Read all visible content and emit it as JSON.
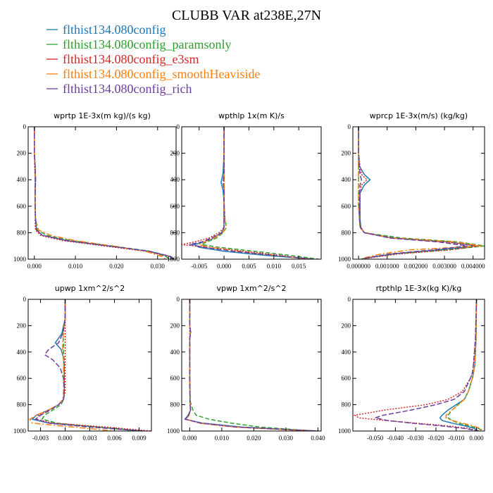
{
  "figure": {
    "title": "CLUBB VAR at238E,27N",
    "legend": [
      {
        "label": "flthist134.080config",
        "color": "#1f77b4"
      },
      {
        "label": "flthist134.080config_paramsonly",
        "color": "#2ca02c"
      },
      {
        "label": "flthist134.080config_e3sm",
        "color": "#d62728"
      },
      {
        "label": "flthist134.080config_smoothHeaviside",
        "color": "#ff7f0e"
      },
      {
        "label": "flthist134.080config_rich",
        "color": "#6b3fa0"
      }
    ]
  },
  "chart_data": [
    {
      "type": "line",
      "title": "wprtp  1E-3x(m kg)/(s kg)",
      "xlim": [
        -0.0015,
        0.0345
      ],
      "ylim": [
        1000,
        0
      ],
      "xticks": [
        0.0,
        0.01,
        0.02,
        0.03
      ],
      "xtick_labels": [
        "0.000",
        "0.010",
        "0.020",
        "0.030"
      ],
      "yticks": [
        0,
        200,
        400,
        600,
        800,
        1000
      ],
      "ytick_labels": [
        "0",
        "200",
        "400",
        "600",
        "800",
        "1000"
      ],
      "y": [
        0,
        100,
        200,
        300,
        400,
        500,
        600,
        700,
        780,
        820,
        860,
        900,
        940,
        980,
        1000
      ],
      "series": [
        {
          "name": "flthist134.080config",
          "values": [
            0,
            0,
            0,
            0.0002,
            0.0003,
            0.0002,
            0.0002,
            0.0003,
            0.0005,
            0.002,
            0.008,
            0.018,
            0.028,
            0.033,
            0.0335
          ]
        },
        {
          "name": "flthist134.080config_paramsonly",
          "values": [
            0,
            0,
            0,
            0.0002,
            0.0002,
            0.0002,
            0.0002,
            0.0003,
            0.0008,
            0.003,
            0.009,
            0.019,
            0.028,
            0.032,
            0.033
          ]
        },
        {
          "name": "flthist134.080config_e3sm",
          "values": [
            0,
            0,
            0,
            0.0001,
            0.0002,
            0.0002,
            0.0002,
            0.0002,
            0.0003,
            0.0015,
            0.007,
            0.017,
            0.027,
            0.033,
            0.034
          ]
        },
        {
          "name": "flthist134.080config_smoothHeaviside",
          "values": [
            0,
            0,
            0,
            0.0002,
            0.0003,
            0.0002,
            0.0002,
            0.0003,
            0.001,
            0.004,
            0.01,
            0.019,
            0.027,
            0.031,
            0.032
          ]
        },
        {
          "name": "flthist134.080config_rich",
          "values": [
            0,
            0,
            0,
            0.0002,
            0.0003,
            0.0002,
            0.0002,
            0.0003,
            0.0005,
            0.002,
            0.008,
            0.018,
            0.028,
            0.0332,
            0.0338
          ]
        }
      ]
    },
    {
      "type": "line",
      "title": "wpthlp  1x(m K)/s",
      "xlim": [
        -0.0085,
        0.0195
      ],
      "ylim": [
        1000,
        0
      ],
      "xticks": [
        -0.005,
        0.0,
        0.005,
        0.01,
        0.015
      ],
      "xtick_labels": [
        "-0.005",
        "0.000",
        "0.005",
        "0.010",
        "0.015"
      ],
      "yticks": [
        0,
        200,
        400,
        600,
        800,
        1000
      ],
      "ytick_labels": [
        "0",
        "200",
        "400",
        "600",
        "800",
        "1000"
      ],
      "y": [
        0,
        200,
        350,
        420,
        480,
        560,
        700,
        760,
        800,
        840,
        870,
        890,
        910,
        940,
        970,
        1000
      ],
      "series": [
        {
          "name": "flthist134.080config",
          "values": [
            0,
            0,
            -0.0002,
            -0.0006,
            -0.0002,
            0,
            0,
            0,
            -0.0005,
            -0.002,
            -0.004,
            -0.006,
            -0.005,
            0,
            0.008,
            0.018
          ]
        },
        {
          "name": "flthist134.080config_paramsonly",
          "values": [
            0,
            0,
            0,
            0,
            0,
            0,
            0.0002,
            0.0005,
            -0.0002,
            -0.0015,
            -0.0035,
            -0.0045,
            -0.001,
            0.006,
            0.013,
            0.019
          ]
        },
        {
          "name": "flthist134.080config_e3sm",
          "values": [
            0,
            0,
            0,
            0,
            0,
            0,
            0,
            0,
            -0.001,
            -0.003,
            -0.006,
            -0.0085,
            -0.003,
            0.004,
            0.011,
            0.017
          ]
        },
        {
          "name": "flthist134.080config_smoothHeaviside",
          "values": [
            0,
            0,
            0,
            0,
            0,
            0,
            0.0002,
            0.0004,
            -0.0003,
            -0.002,
            -0.004,
            -0.005,
            -0.003,
            0.003,
            0.01,
            0.017
          ]
        },
        {
          "name": "flthist134.080config_rich",
          "values": [
            0,
            0,
            0,
            -0.0002,
            0,
            0,
            0,
            0,
            -0.0005,
            -0.0025,
            -0.0045,
            -0.007,
            -0.004,
            0.002,
            0.01,
            0.018
          ]
        }
      ]
    },
    {
      "type": "line",
      "title": "wprcp  1E-3x(m/s) (kg/kg)",
      "xlim": [
        -0.0002,
        0.0044
      ],
      "ylim": [
        1000,
        0
      ],
      "xticks": [
        0.0,
        0.001,
        0.002,
        0.003,
        0.004
      ],
      "xtick_labels": [
        "0.000000",
        "0.001000",
        "0.002000",
        "0.003000",
        "0.004000"
      ],
      "yticks": [
        0,
        200,
        400,
        600,
        800,
        1000
      ],
      "ytick_labels": [
        "0",
        "200",
        "400",
        "600",
        "800",
        "1000"
      ],
      "y": [
        0,
        200,
        300,
        360,
        400,
        440,
        500,
        600,
        700,
        760,
        800,
        840,
        870,
        900,
        930,
        960,
        990,
        1000
      ],
      "series": [
        {
          "name": "flthist134.080config",
          "values": [
            0,
            0,
            3e-05,
            0.0002,
            0.0004,
            0.0002,
            5e-05,
            5e-05,
            5e-05,
            8e-05,
            0.0002,
            0.0012,
            0.0032,
            0.0041,
            0.0028,
            0.0012,
            0.0003,
            0.0001
          ]
        },
        {
          "name": "flthist134.080config_paramsonly",
          "values": [
            0,
            0,
            0,
            0,
            0,
            0,
            0,
            0,
            3e-05,
            5e-05,
            0.0002,
            0.0015,
            0.0035,
            0.0044,
            0.0031,
            0.0013,
            0.0003,
            0.0001
          ]
        },
        {
          "name": "flthist134.080config_e3sm",
          "values": [
            0,
            0,
            5e-05,
            0.0001,
            0.0003,
            0.0001,
            5e-05,
            3e-05,
            3e-05,
            8e-05,
            0.0002,
            0.0011,
            0.003,
            0.0042,
            0.0032,
            0.0014,
            0.0004,
            0.0001
          ]
        },
        {
          "name": "flthist134.080config_smoothHeaviside",
          "values": [
            0,
            0,
            0,
            0,
            0,
            0,
            0,
            0,
            3e-05,
            5e-05,
            0.0002,
            0.0012,
            0.0034,
            0.0043,
            0.0018,
            0.0008,
            0.0002,
            0.0001
          ]
        },
        {
          "name": "flthist134.080config_rich",
          "values": [
            0,
            0,
            2e-05,
            5e-05,
            0.0001,
            5e-05,
            3e-05,
            3e-05,
            3e-05,
            6e-05,
            0.0002,
            0.0011,
            0.0028,
            0.0038,
            0.0026,
            0.0011,
            0.0003,
            0.0001
          ]
        }
      ]
    },
    {
      "type": "line",
      "title": "upwp  1xm^2/s^2",
      "xlim": [
        -0.0045,
        0.0105
      ],
      "ylim": [
        1000,
        0
      ],
      "xticks": [
        -0.003,
        0.0,
        0.003,
        0.006,
        0.009
      ],
      "xtick_labels": [
        "-0.003",
        "0.000",
        "0.003",
        "0.006",
        "0.009"
      ],
      "yticks": [
        0,
        200,
        400,
        600,
        800,
        1000
      ],
      "ytick_labels": [
        "0",
        "200",
        "400",
        "600",
        "800",
        "1000"
      ],
      "y": [
        0,
        150,
        200,
        260,
        330,
        380,
        420,
        460,
        520,
        600,
        700,
        760,
        800,
        840,
        880,
        910,
        940,
        970,
        1000
      ],
      "series": [
        {
          "name": "flthist134.080config",
          "values": [
            0,
            0,
            -0.0002,
            -0.0004,
            -0.0012,
            -0.0005,
            -0.0003,
            -0.0002,
            -0.0001,
            -0.0001,
            -0.0001,
            -0.0002,
            -0.0008,
            -0.002,
            -0.0035,
            -0.004,
            -0.002,
            0.004,
            0.0095
          ]
        },
        {
          "name": "flthist134.080config_paramsonly",
          "values": [
            0,
            0,
            -0.0002,
            -0.0003,
            -0.0002,
            -0.0002,
            -0.0002,
            -0.0001,
            -0.0001,
            -0.0001,
            -0.0001,
            -0.0002,
            -0.0005,
            -0.0015,
            -0.0025,
            -0.0028,
            -0.001,
            0.004,
            0.009
          ]
        },
        {
          "name": "flthist134.080config_e3sm",
          "values": [
            0,
            0,
            0,
            0,
            0,
            0,
            0,
            0,
            0,
            0,
            0,
            -0.0002,
            -0.0008,
            -0.002,
            -0.0032,
            -0.0035,
            -0.0015,
            0.005,
            0.0105
          ]
        },
        {
          "name": "flthist134.080config_smoothHeaviside",
          "values": [
            0,
            0,
            -0.0001,
            -0.0002,
            -0.0003,
            -0.0003,
            -0.0003,
            -0.0002,
            -0.0002,
            -0.0002,
            -0.0002,
            -0.0003,
            -0.0008,
            -0.002,
            -0.0035,
            -0.0043,
            -0.004,
            0.001,
            0.006
          ]
        },
        {
          "name": "flthist134.080config_rich",
          "values": [
            0,
            0,
            -0.0001,
            -0.0003,
            -0.0008,
            -0.002,
            -0.0025,
            -0.0015,
            -0.0006,
            -0.0002,
            -0.0001,
            -0.0002,
            -0.0008,
            -0.0018,
            -0.003,
            -0.0036,
            -0.002,
            0.003,
            0.0095
          ]
        }
      ]
    },
    {
      "type": "line",
      "title": "vpwp  1xm^2/s^2",
      "xlim": [
        -0.0025,
        0.041
      ],
      "ylim": [
        1000,
        0
      ],
      "xticks": [
        0.0,
        0.01,
        0.02,
        0.03,
        0.04
      ],
      "xtick_labels": [
        "0.000",
        "0.010",
        "0.020",
        "0.030",
        "0.040"
      ],
      "yticks": [
        0,
        200,
        400,
        600,
        800,
        1000
      ],
      "ytick_labels": [
        "0",
        "200",
        "400",
        "600",
        "800",
        "1000"
      ],
      "y": [
        0,
        200,
        250,
        300,
        400,
        600,
        780,
        840,
        880,
        910,
        940,
        970,
        990,
        1000
      ],
      "series": [
        {
          "name": "flthist134.080config",
          "values": [
            0,
            0,
            0.0003,
            0,
            0,
            0,
            0.0001,
            0.0003,
            -0.0005,
            -0.0015,
            0.004,
            0.016,
            0.032,
            0.039
          ]
        },
        {
          "name": "flthist134.080config_paramsonly",
          "values": [
            0,
            0,
            0.0002,
            0,
            0,
            0,
            0.0002,
            0.001,
            0.002,
            0.006,
            0.013,
            0.022,
            0.033,
            0.039
          ]
        },
        {
          "name": "flthist134.080config_e3sm",
          "values": [
            0,
            0,
            0,
            0,
            0,
            0,
            0.0001,
            0.0003,
            -0.0003,
            -0.0012,
            0.003,
            0.014,
            0.03,
            0.041
          ]
        },
        {
          "name": "flthist134.080config_smoothHeaviside",
          "values": [
            0,
            0,
            0.0002,
            0,
            0,
            0,
            0.0001,
            0.0002,
            -0.0002,
            -0.001,
            0.003,
            0.014,
            0.03,
            0.038
          ]
        },
        {
          "name": "flthist134.080config_rich",
          "values": [
            0,
            0,
            0.0003,
            0,
            0,
            0,
            0.0001,
            0.0002,
            -0.0004,
            -0.0014,
            0.0035,
            0.015,
            0.031,
            0.04
          ]
        }
      ]
    },
    {
      "type": "line",
      "title": "rtpthlp  1E-3x(kg K)/kg",
      "xlim": [
        -0.061,
        0.004
      ],
      "ylim": [
        1000,
        0
      ],
      "xticks": [
        -0.05,
        -0.04,
        -0.03,
        -0.02,
        -0.01,
        0.0
      ],
      "xtick_labels": [
        "-0.050",
        "-0.040",
        "-0.030",
        "-0.020",
        "-0.010",
        "0.000"
      ],
      "yticks": [
        0,
        200,
        400,
        600,
        800,
        1000
      ],
      "ytick_labels": [
        "0",
        "200",
        "400",
        "600",
        "800",
        "1000"
      ],
      "y": [
        0,
        300,
        500,
        560,
        600,
        700,
        760,
        800,
        840,
        880,
        900,
        920,
        940,
        960,
        980,
        1000
      ],
      "series": [
        {
          "name": "flthist134.080config",
          "values": [
            0,
            -0.0002,
            -0.0008,
            -0.0015,
            -0.002,
            -0.004,
            -0.006,
            -0.01,
            -0.014,
            -0.017,
            -0.018,
            -0.017,
            -0.012,
            -0.006,
            -0.001,
            0.001
          ]
        },
        {
          "name": "flthist134.080config_paramsonly",
          "values": [
            0,
            -0.0002,
            -0.0008,
            -0.0015,
            -0.002,
            -0.004,
            -0.006,
            -0.009,
            -0.012,
            -0.014,
            -0.014,
            -0.012,
            -0.009,
            -0.004,
            0.001,
            0.003
          ]
        },
        {
          "name": "flthist134.080config_e3sm",
          "values": [
            0,
            -0.0005,
            -0.0015,
            -0.002,
            -0.003,
            -0.007,
            -0.014,
            -0.025,
            -0.045,
            -0.06,
            -0.058,
            -0.045,
            -0.03,
            -0.015,
            -0.004,
            0.001
          ]
        },
        {
          "name": "flthist134.080config_smoothHeaviside",
          "values": [
            0,
            -0.0002,
            -0.0008,
            -0.0015,
            -0.002,
            -0.004,
            -0.006,
            -0.009,
            -0.012,
            -0.015,
            -0.015,
            -0.012,
            -0.007,
            -0.002,
            0.002,
            0.003
          ]
        },
        {
          "name": "flthist134.080config_rich",
          "values": [
            0,
            -0.0005,
            -0.0015,
            -0.002,
            -0.003,
            -0.006,
            -0.011,
            -0.02,
            -0.032,
            -0.046,
            -0.05,
            -0.044,
            -0.032,
            -0.018,
            -0.006,
            0.001
          ]
        }
      ]
    }
  ]
}
